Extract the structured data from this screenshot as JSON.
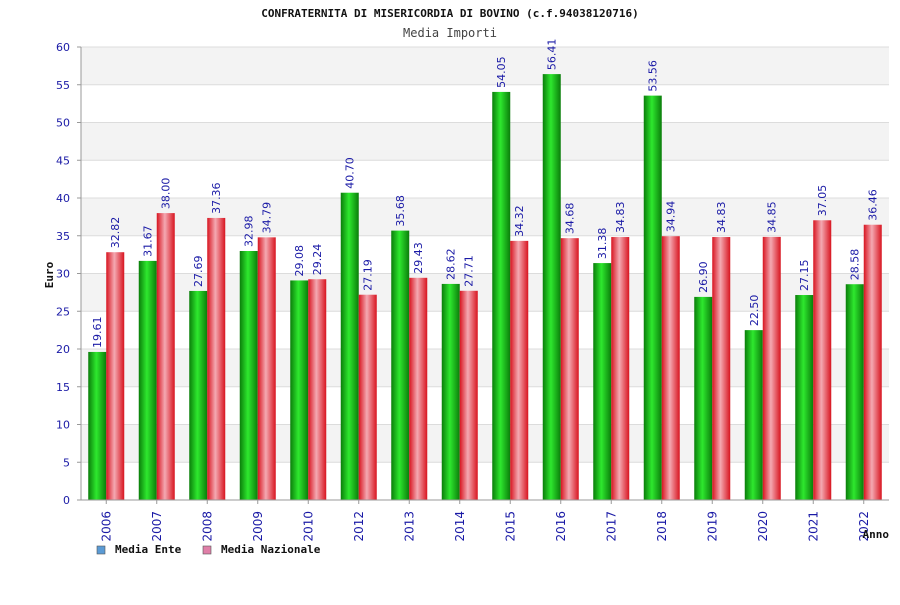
{
  "chart_data": {
    "type": "bar",
    "title": "CONFRATERNITA DI MISERICORDIA DI BOVINO (c.f.94038120716)",
    "subtitle": "Media Importi",
    "ylabel": "Euro",
    "xlabel": "Anno",
    "ylim": [
      0,
      60
    ],
    "yticks": [
      0,
      5,
      10,
      15,
      20,
      25,
      30,
      35,
      40,
      45,
      50,
      55,
      60
    ],
    "grid": true,
    "legend_position": "bottom-left",
    "categories": [
      "2006",
      "2007",
      "2008",
      "2009",
      "2010",
      "2012",
      "2013",
      "2014",
      "2015",
      "2016",
      "2017",
      "2018",
      "2019",
      "2020",
      "2021",
      "2022"
    ],
    "series": [
      {
        "name": "Media Ente",
        "color": "#1ea51e",
        "legend_color": "#5b9bd5",
        "values": [
          19.61,
          31.67,
          27.69,
          32.98,
          29.08,
          40.7,
          35.68,
          28.62,
          54.05,
          56.41,
          31.38,
          53.56,
          26.9,
          22.5,
          27.15,
          28.58
        ],
        "labels": [
          "19.61",
          "31.67",
          "27.69",
          "32.98",
          "29.08",
          "40.70",
          "35.68",
          "28.62",
          "54.05",
          "56.41",
          "31.38",
          "53.56",
          "26.90",
          "22.50",
          "27.15",
          "28.58"
        ]
      },
      {
        "name": "Media Nazionale",
        "color": "#e8252f",
        "legend_color": "#e07fa8",
        "values": [
          32.82,
          38.0,
          37.36,
          34.79,
          29.24,
          27.19,
          29.43,
          27.71,
          34.32,
          34.68,
          34.83,
          34.94,
          34.83,
          34.85,
          37.05,
          36.46
        ],
        "labels": [
          "32.82",
          "38.00",
          "37.36",
          "34.79",
          "29.24",
          "27.19",
          "29.43",
          "27.71",
          "34.32",
          "34.68",
          "34.83",
          "34.94",
          "34.83",
          "34.85",
          "37.05",
          "36.46"
        ]
      }
    ]
  }
}
